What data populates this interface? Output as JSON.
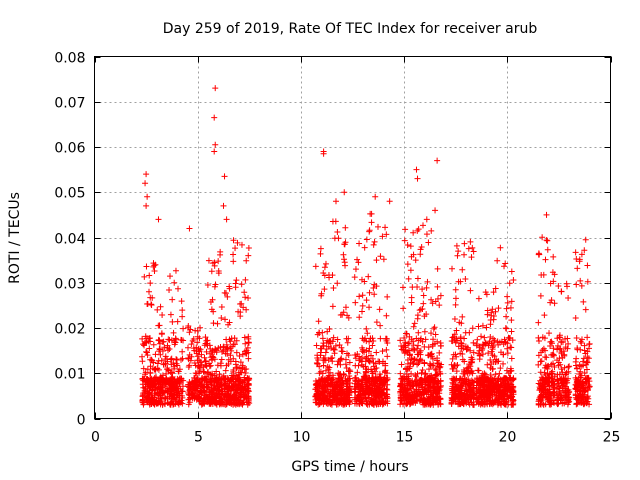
{
  "chart_data": {
    "type": "scatter",
    "title": "Day 259 of 2019, Rate Of TEC Index for receiver arub",
    "xlabel": "GPS time / hours",
    "ylabel": "ROTI / TECUs",
    "xlim": [
      0,
      25
    ],
    "ylim": [
      0,
      0.08
    ],
    "xticks": [
      "0",
      "5",
      "10",
      "15",
      "20",
      "25"
    ],
    "yticks": [
      "0",
      "0.01",
      "0.02",
      "0.03",
      "0.04",
      "0.05",
      "0.06",
      "0.07",
      "0.08"
    ],
    "grid": true,
    "marker": "+",
    "color": "#ff0000",
    "clusters": [
      {
        "x_range": [
          2.3,
          3.0
        ],
        "density": 1.0,
        "peak": 0.035
      },
      {
        "x_range": [
          3.0,
          3.6
        ],
        "density": 0.8,
        "peak": 0.025
      },
      {
        "x_range": [
          3.6,
          4.3
        ],
        "density": 0.9,
        "peak": 0.034
      },
      {
        "x_range": [
          4.5,
          5.4
        ],
        "density": 0.8,
        "peak": 0.022
      },
      {
        "x_range": [
          5.4,
          6.2
        ],
        "density": 1.0,
        "peak": 0.037
      },
      {
        "x_range": [
          6.2,
          6.7
        ],
        "density": 0.9,
        "peak": 0.03
      },
      {
        "x_range": [
          6.7,
          7.5
        ],
        "density": 1.0,
        "peak": 0.04
      },
      {
        "x_range": [
          10.7,
          11.5
        ],
        "density": 1.0,
        "peak": 0.038
      },
      {
        "x_range": [
          11.5,
          12.4
        ],
        "density": 1.0,
        "peak": 0.045
      },
      {
        "x_range": [
          12.6,
          13.3
        ],
        "density": 0.9,
        "peak": 0.04
      },
      {
        "x_range": [
          13.3,
          14.2
        ],
        "density": 1.0,
        "peak": 0.046
      },
      {
        "x_range": [
          14.8,
          15.6
        ],
        "density": 1.0,
        "peak": 0.042
      },
      {
        "x_range": [
          15.6,
          16.8
        ],
        "density": 1.0,
        "peak": 0.045
      },
      {
        "x_range": [
          17.3,
          18.4
        ],
        "density": 1.0,
        "peak": 0.04
      },
      {
        "x_range": [
          18.5,
          19.5
        ],
        "density": 1.0,
        "peak": 0.03
      },
      {
        "x_range": [
          19.5,
          20.3
        ],
        "density": 1.0,
        "peak": 0.04
      },
      {
        "x_range": [
          21.5,
          22.3
        ],
        "density": 0.9,
        "peak": 0.042
      },
      {
        "x_range": [
          22.4,
          23.0
        ],
        "density": 0.8,
        "peak": 0.03
      },
      {
        "x_range": [
          23.3,
          24.0
        ],
        "density": 0.9,
        "peak": 0.038
      }
    ],
    "outliers": [
      {
        "x": 2.5,
        "y": 0.054
      },
      {
        "x": 2.45,
        "y": 0.052
      },
      {
        "x": 2.55,
        "y": 0.049
      },
      {
        "x": 2.5,
        "y": 0.047
      },
      {
        "x": 3.1,
        "y": 0.044
      },
      {
        "x": 4.6,
        "y": 0.042
      },
      {
        "x": 5.85,
        "y": 0.073
      },
      {
        "x": 5.8,
        "y": 0.0665
      },
      {
        "x": 5.85,
        "y": 0.0605
      },
      {
        "x": 5.8,
        "y": 0.059
      },
      {
        "x": 6.3,
        "y": 0.0535
      },
      {
        "x": 6.25,
        "y": 0.047
      },
      {
        "x": 6.4,
        "y": 0.044
      },
      {
        "x": 11.1,
        "y": 0.059
      },
      {
        "x": 11.1,
        "y": 0.0585
      },
      {
        "x": 12.1,
        "y": 0.05
      },
      {
        "x": 11.7,
        "y": 0.048
      },
      {
        "x": 13.6,
        "y": 0.049
      },
      {
        "x": 14.3,
        "y": 0.048
      },
      {
        "x": 15.6,
        "y": 0.055
      },
      {
        "x": 15.65,
        "y": 0.053
      },
      {
        "x": 16.6,
        "y": 0.057
      },
      {
        "x": 16.5,
        "y": 0.046
      },
      {
        "x": 16.1,
        "y": 0.044
      },
      {
        "x": 21.9,
        "y": 0.045
      },
      {
        "x": 23.8,
        "y": 0.0395
      }
    ]
  }
}
